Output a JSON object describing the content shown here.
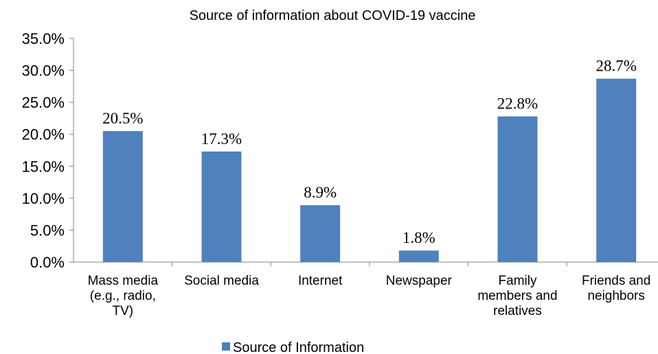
{
  "chart_data": {
    "type": "bar",
    "title": "Source of information about COVID-19 vaccine",
    "xlabel": "",
    "ylabel": "",
    "categories": [
      [
        "Mass media",
        "(e.g., radio,",
        "TV)"
      ],
      [
        "Social media"
      ],
      [
        "Internet"
      ],
      [
        "Newspaper"
      ],
      [
        "Family",
        "members and",
        "relatives"
      ],
      [
        "Friends  and",
        "neighbors"
      ]
    ],
    "series": [
      {
        "name": "Source of Information",
        "color": "#4f81bd",
        "values": [
          20.5,
          17.3,
          8.9,
          1.8,
          22.8,
          28.7
        ],
        "labels": [
          "20.5%",
          "17.3%",
          "8.9%",
          "1.8%",
          "22.8%",
          "28.7%"
        ]
      }
    ],
    "ylim": [
      0,
      35
    ],
    "yticks": [
      0,
      5,
      10,
      15,
      20,
      25,
      30,
      35
    ],
    "ytick_labels": [
      "0.0%",
      "5.0%",
      "10.0%",
      "15.0%",
      "20.0%",
      "25.0%",
      "30.0%",
      "35.0%"
    ],
    "grid": false,
    "legend": "bottom"
  }
}
